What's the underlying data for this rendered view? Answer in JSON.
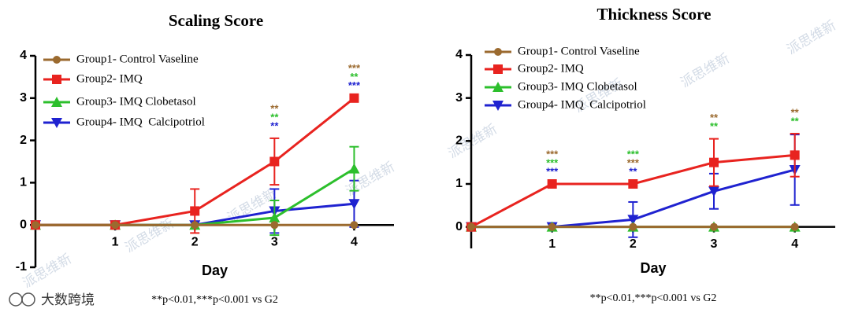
{
  "chart_data": [
    {
      "type": "line",
      "title": "Scaling Score",
      "x_label": "Day",
      "note": "**p<0.01,***p<0.001 vs G2",
      "x": [
        0,
        1,
        2,
        3,
        4
      ],
      "xlim": [
        0,
        4.5
      ],
      "xticks": [
        1,
        2,
        3,
        4
      ],
      "ylim": [
        -1,
        4
      ],
      "yticks": [
        -1,
        0,
        1,
        2,
        3,
        4
      ],
      "legend": "upper left",
      "series": [
        {
          "name": "Group1- Control Vaseline",
          "color": "#9b6a2f",
          "marker": "circle",
          "values": [
            0,
            0,
            0,
            0,
            0
          ],
          "errors": [
            0,
            0,
            0,
            0,
            0
          ]
        },
        {
          "name": "Group2- IMQ",
          "color": "#e8231f",
          "marker": "square",
          "values": [
            0,
            0,
            0.33,
            1.5,
            3
          ],
          "errors": [
            0,
            0,
            0.52,
            0.55,
            0
          ]
        },
        {
          "name": "Group3- IMQ Clobetasol",
          "color": "#2cbf2c",
          "marker": "triangle",
          "values": [
            0,
            0,
            0,
            0.17,
            1.33
          ],
          "errors": [
            0,
            0,
            0,
            0.41,
            0.52
          ]
        },
        {
          "name": "Group4- IMQ  Calcipotriol",
          "color": "#1f22d0",
          "marker": "triangle-down",
          "values": [
            0,
            0,
            0,
            0.33,
            0.5
          ],
          "errors": [
            0,
            0,
            0,
            0.52,
            0.55
          ]
        }
      ],
      "annotations": [
        {
          "x": 3,
          "lines": [
            {
              "text": "**",
              "color": "#9b6a2f"
            },
            {
              "text": "**",
              "color": "#2cbf2c"
            },
            {
              "text": "**",
              "color": "#1f22d0"
            }
          ]
        },
        {
          "x": 4,
          "lines": [
            {
              "text": "***",
              "color": "#9b6a2f"
            },
            {
              "text": "**",
              "color": "#2cbf2c"
            },
            {
              "text": "***",
              "color": "#1f22d0"
            }
          ]
        }
      ]
    },
    {
      "type": "line",
      "title": "Thickness Score",
      "x_label": "Day",
      "note": "**p<0.01,***p<0.001 vs G2",
      "x": [
        0,
        1,
        2,
        3,
        4
      ],
      "xlim": [
        0,
        4.5
      ],
      "xticks": [
        1,
        2,
        3,
        4
      ],
      "ylim": [
        -0.5,
        4
      ],
      "yticks": [
        0,
        1,
        2,
        3,
        4
      ],
      "legend": "upper left",
      "series": [
        {
          "name": "Group1- Control Vaseline",
          "color": "#9b6a2f",
          "marker": "circle",
          "values": [
            0,
            0,
            0,
            0,
            0
          ],
          "errors": [
            0,
            0,
            0,
            0,
            0
          ]
        },
        {
          "name": "Group2- IMQ",
          "color": "#e8231f",
          "marker": "square",
          "values": [
            0,
            1,
            1,
            1.5,
            1.67
          ],
          "errors": [
            0,
            0,
            0,
            0.55,
            0.5
          ]
        },
        {
          "name": "Group3- IMQ Clobetasol",
          "color": "#2cbf2c",
          "marker": "triangle",
          "values": [
            0,
            0,
            0,
            0,
            0
          ],
          "errors": [
            0,
            0,
            0,
            0,
            0
          ]
        },
        {
          "name": "Group4- IMQ  Calcipotriol",
          "color": "#1f22d0",
          "marker": "triangle-down",
          "values": [
            0,
            0,
            0.17,
            0.83,
            1.33
          ],
          "errors": [
            0,
            0,
            0.41,
            0.41,
            0.82
          ]
        }
      ],
      "annotations": [
        {
          "x": 1,
          "lines": [
            {
              "text": "***",
              "color": "#9b6a2f"
            },
            {
              "text": "***",
              "color": "#2cbf2c"
            },
            {
              "text": "***",
              "color": "#1f22d0"
            }
          ]
        },
        {
          "x": 2,
          "lines": [
            {
              "text": "***",
              "color": "#2cbf2c"
            },
            {
              "text": "***",
              "color": "#9b6a2f"
            },
            {
              "text": "**",
              "color": "#1f22d0"
            }
          ]
        },
        {
          "x": 3,
          "lines": [
            {
              "text": "**",
              "color": "#9b6a2f"
            },
            {
              "text": "**",
              "color": "#2cbf2c"
            }
          ]
        },
        {
          "x": 4,
          "lines": [
            {
              "text": "**",
              "color": "#9b6a2f"
            },
            {
              "text": "**",
              "color": "#2cbf2c"
            }
          ]
        }
      ]
    }
  ],
  "watermarks": [
    "派思维新",
    "派思维新",
    "派思维新",
    "派思维新",
    "派思维新",
    "派思维新",
    "派思维新",
    "派思维新"
  ],
  "brand": "大数跨境"
}
